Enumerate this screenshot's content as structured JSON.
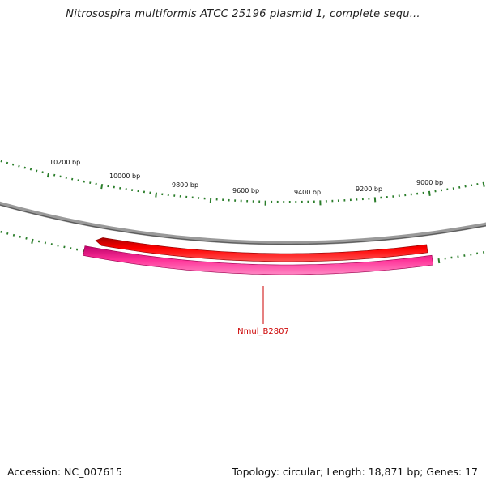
{
  "title": "Nitrosospira multiformis ATCC 25196 plasmid 1, complete sequ...",
  "footer": {
    "accession": "Accession: NC_007615",
    "summary": "Topology: circular; Length: 18,871 bp; Genes: 17"
  },
  "scale_ticks": [
    "10200 bp",
    "10000 bp",
    "9800 bp",
    "9600 bp",
    "9400 bp",
    "9200 bp",
    "9000 bp"
  ],
  "genes": [
    {
      "label": "Nmul_B2807",
      "strand": "minus",
      "color": "#ff0000"
    }
  ],
  "colors": {
    "backbone": "#808080",
    "gene": "#ff0000",
    "orf": "#ff3399",
    "ticks": "#2a7d2a",
    "gene_label": "#cc0000"
  }
}
